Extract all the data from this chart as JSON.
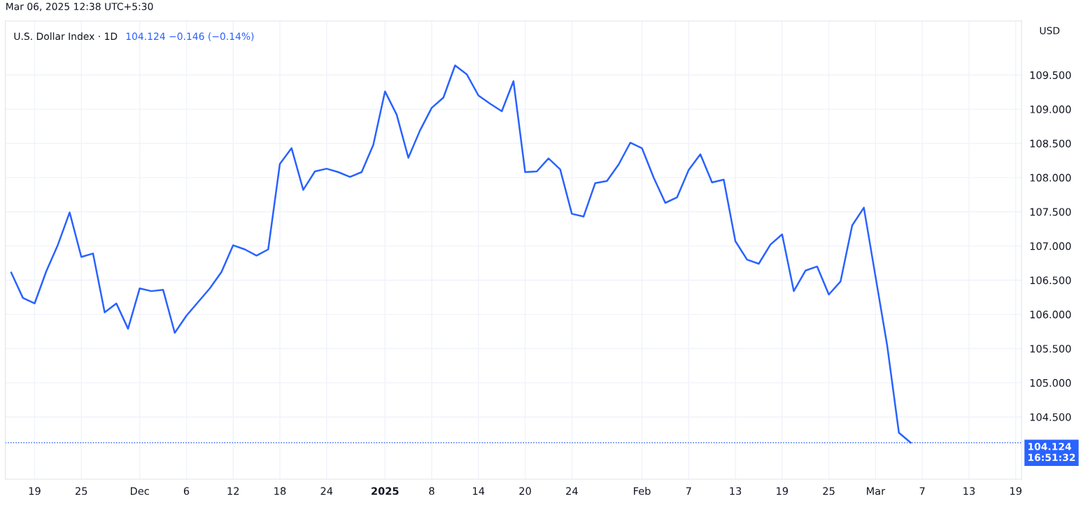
{
  "chart_data": {
    "type": "line",
    "title": "U.S. Dollar Index · 1D",
    "subtitle": "104.124 −0.146 (−0.14%)",
    "annotations": [
      "Mar 06, 2025 12:38 UTC+5:30",
      "USD"
    ],
    "categories": [
      null,
      null,
      "19",
      null,
      null,
      null,
      "25",
      null,
      null,
      null,
      null,
      "Dec",
      null,
      null,
      null,
      "6",
      null,
      null,
      null,
      "12",
      null,
      null,
      null,
      "18",
      null,
      null,
      null,
      "24",
      null,
      null,
      null,
      null,
      "2025",
      null,
      null,
      null,
      "8",
      null,
      null,
      null,
      "14",
      null,
      null,
      null,
      "20",
      null,
      null,
      null,
      "24",
      null,
      null,
      null,
      null,
      null,
      "Feb",
      null,
      null,
      null,
      "7",
      null,
      null,
      null,
      "13",
      null,
      null,
      null,
      "19",
      null,
      null,
      null,
      "25",
      null,
      null,
      null,
      "Mar",
      null,
      null,
      null,
      "7",
      null,
      null,
      null,
      "13",
      null,
      null,
      null,
      "19"
    ],
    "series": [
      {
        "color": "#2962ff",
        "values": [
          106.61,
          106.24,
          106.16,
          106.63,
          107.02,
          107.49,
          106.84,
          106.89,
          106.03,
          106.16,
          105.79,
          106.38,
          106.34,
          106.36,
          105.73,
          105.98,
          106.18,
          106.38,
          106.62,
          107.01,
          106.95,
          106.86,
          106.95,
          108.2,
          108.43,
          107.82,
          108.09,
          108.13,
          108.08,
          108.01,
          108.08,
          108.48,
          109.26,
          108.92,
          108.29,
          108.69,
          109.02,
          109.17,
          109.64,
          109.51,
          109.2,
          109.08,
          108.97,
          109.41,
          108.08,
          108.09,
          108.28,
          108.12,
          107.47,
          107.43,
          107.92,
          107.95,
          108.19,
          108.51,
          108.43,
          108.0,
          107.63,
          107.71,
          108.11,
          108.34,
          107.93,
          107.97,
          107.07,
          106.8,
          106.74,
          107.02,
          107.17,
          106.34,
          106.64,
          106.7,
          106.29,
          106.48,
          107.3,
          107.56,
          106.55,
          105.54,
          104.27,
          104.124,
          null,
          null,
          null,
          null,
          null,
          null,
          null,
          null,
          null
        ]
      }
    ],
    "ylim": [
      103.59,
      110.29
    ],
    "yticks": [
      {
        "value": 104.5,
        "label": "104.500"
      },
      {
        "value": 105,
        "label": "105.000"
      },
      {
        "value": 105.5,
        "label": "105.500"
      },
      {
        "value": 106,
        "label": "106.000"
      },
      {
        "value": 106.5,
        "label": "106.500"
      },
      {
        "value": 107,
        "label": "107.000"
      },
      {
        "value": 107.5,
        "label": "107.500"
      },
      {
        "value": 108,
        "label": "108.000"
      },
      {
        "value": 108.5,
        "label": "108.500"
      },
      {
        "value": 109,
        "label": "109.000"
      },
      {
        "value": 109.5,
        "label": "109.500"
      }
    ],
    "ref_lines": [
      {
        "axis": "y",
        "value": 104.124,
        "label": "104.124\n16:51:32",
        "color": "#2962ff",
        "line_style": "dotted"
      }
    ],
    "grid": true,
    "legend": false,
    "marker": "none",
    "line_style": "solid"
  }
}
